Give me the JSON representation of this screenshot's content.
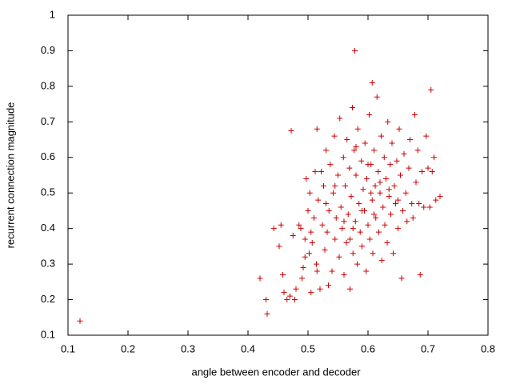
{
  "chart_data": {
    "type": "scatter",
    "xlabel": "angle between encoder and decoder",
    "ylabel": "recurrent connection magnitude",
    "color": "#cc0000",
    "xlim": [
      0.1,
      0.8
    ],
    "xticks": [
      0.1,
      0.2,
      0.3,
      0.4,
      0.5,
      0.6,
      0.7,
      0.8
    ],
    "ylim": [
      0.1,
      1
    ],
    "yticks": [
      0.1,
      0.2,
      0.3,
      0.4,
      0.5,
      0.6,
      0.7,
      0.8,
      0.9,
      1
    ],
    "x": [
      0.12,
      0.578,
      0.607,
      0.705,
      0.42,
      0.43,
      0.432,
      0.443,
      0.452,
      0.455,
      0.458,
      0.46,
      0.465,
      0.47,
      0.472,
      0.475,
      0.478,
      0.48,
      0.485,
      0.488,
      0.49,
      0.492,
      0.495,
      0.497,
      0.5,
      0.502,
      0.503,
      0.505,
      0.507,
      0.51,
      0.512,
      0.514,
      0.515,
      0.517,
      0.52,
      0.522,
      0.524,
      0.526,
      0.528,
      0.53,
      0.532,
      0.534,
      0.535,
      0.537,
      0.54,
      0.542,
      0.544,
      0.545,
      0.547,
      0.55,
      0.552,
      0.553,
      0.555,
      0.557,
      0.559,
      0.56,
      0.562,
      0.564,
      0.565,
      0.567,
      0.569,
      0.57,
      0.572,
      0.574,
      0.575,
      0.577,
      0.579,
      0.58,
      0.582,
      0.583,
      0.585,
      0.587,
      0.589,
      0.59,
      0.592,
      0.594,
      0.595,
      0.597,
      0.598,
      0.6,
      0.602,
      0.603,
      0.605,
      0.607,
      0.608,
      0.61,
      0.612,
      0.613,
      0.615,
      0.617,
      0.618,
      0.62,
      0.622,
      0.623,
      0.625,
      0.627,
      0.628,
      0.63,
      0.632,
      0.633,
      0.635,
      0.637,
      0.638,
      0.64,
      0.642,
      0.644,
      0.646,
      0.648,
      0.65,
      0.652,
      0.654,
      0.656,
      0.658,
      0.66,
      0.663,
      0.665,
      0.668,
      0.67,
      0.673,
      0.675,
      0.678,
      0.68,
      0.683,
      0.685,
      0.687,
      0.69,
      0.693,
      0.697,
      0.7,
      0.703,
      0.707,
      0.71,
      0.713,
      0.72,
      0.495,
      0.505,
      0.515,
      0.53,
      0.545,
      0.56,
      0.575,
      0.59,
      0.605,
      0.62,
      0.635,
      0.65,
      0.58,
      0.57,
      0.6,
      0.61
    ],
    "y": [
      0.14,
      0.9,
      0.81,
      0.79,
      0.26,
      0.2,
      0.16,
      0.4,
      0.35,
      0.41,
      0.27,
      0.22,
      0.2,
      0.21,
      0.675,
      0.38,
      0.2,
      0.23,
      0.41,
      0.4,
      0.26,
      0.29,
      0.37,
      0.54,
      0.45,
      0.33,
      0.5,
      0.22,
      0.36,
      0.43,
      0.56,
      0.3,
      0.68,
      0.48,
      0.23,
      0.56,
      0.41,
      0.52,
      0.34,
      0.62,
      0.39,
      0.24,
      0.45,
      0.58,
      0.28,
      0.5,
      0.66,
      0.37,
      0.43,
      0.55,
      0.32,
      0.71,
      0.46,
      0.4,
      0.6,
      0.27,
      0.52,
      0.36,
      0.65,
      0.44,
      0.57,
      0.23,
      0.49,
      0.74,
      0.33,
      0.62,
      0.42,
      0.55,
      0.3,
      0.68,
      0.47,
      0.39,
      0.59,
      0.35,
      0.51,
      0.45,
      0.64,
      0.28,
      0.54,
      0.41,
      0.72,
      0.37,
      0.58,
      0.48,
      0.33,
      0.62,
      0.52,
      0.43,
      0.77,
      0.56,
      0.39,
      0.5,
      0.66,
      0.31,
      0.46,
      0.6,
      0.41,
      0.54,
      0.36,
      0.7,
      0.49,
      0.58,
      0.44,
      0.64,
      0.33,
      0.52,
      0.47,
      0.59,
      0.4,
      0.68,
      0.55,
      0.26,
      0.45,
      0.61,
      0.5,
      0.42,
      0.57,
      0.65,
      0.47,
      0.43,
      0.72,
      0.53,
      0.62,
      0.47,
      0.27,
      0.56,
      0.46,
      0.66,
      0.57,
      0.46,
      0.56,
      0.6,
      0.48,
      0.49,
      0.32,
      0.39,
      0.28,
      0.47,
      0.52,
      0.42,
      0.4,
      0.45,
      0.5,
      0.53,
      0.51,
      0.48,
      0.63,
      0.37,
      0.58,
      0.44
    ]
  }
}
